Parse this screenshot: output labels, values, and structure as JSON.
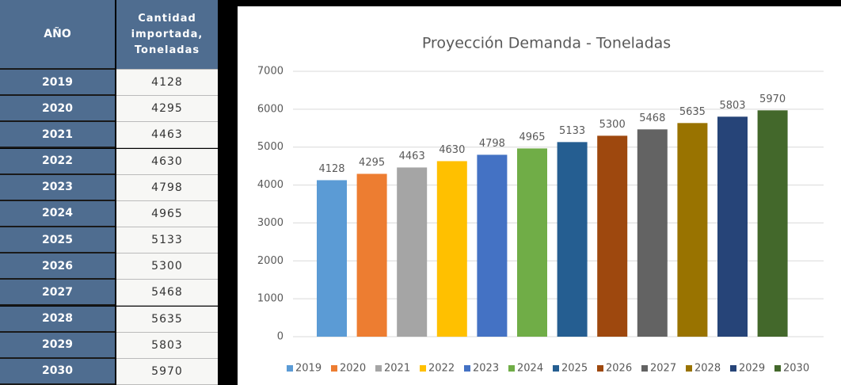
{
  "table": {
    "header": [
      "AÑO",
      "Cantidad importada, Toneladas"
    ],
    "rows": [
      [
        2019,
        4128
      ],
      [
        2020,
        4295
      ],
      [
        2021,
        4463
      ],
      [
        2022,
        4630
      ],
      [
        2023,
        4798
      ],
      [
        2024,
        4965
      ],
      [
        2025,
        5133
      ],
      [
        2026,
        5300
      ],
      [
        2027,
        5468
      ],
      [
        2028,
        5635
      ],
      [
        2029,
        5803
      ],
      [
        2030,
        5970
      ]
    ]
  },
  "chart_data": {
    "type": "bar",
    "title": "Proyección Demanda - Toneladas",
    "categories": [
      null
    ],
    "series": [
      {
        "name": "2019",
        "color": "#5b9bd5",
        "values": [
          4128
        ]
      },
      {
        "name": "2020",
        "color": "#ed7d31",
        "values": [
          4295
        ]
      },
      {
        "name": "2021",
        "color": "#a5a5a5",
        "values": [
          4463
        ]
      },
      {
        "name": "2022",
        "color": "#ffc000",
        "values": [
          4630
        ]
      },
      {
        "name": "2023",
        "color": "#4472c4",
        "values": [
          4798
        ]
      },
      {
        "name": "2024",
        "color": "#70ad47",
        "values": [
          4965
        ]
      },
      {
        "name": "2025",
        "color": "#255e91",
        "values": [
          5133
        ]
      },
      {
        "name": "2026",
        "color": "#9e480e",
        "values": [
          5300
        ]
      },
      {
        "name": "2027",
        "color": "#636363",
        "values": [
          5468
        ]
      },
      {
        "name": "2028",
        "color": "#997300",
        "values": [
          5635
        ]
      },
      {
        "name": "2029",
        "color": "#264478",
        "values": [
          5803
        ]
      },
      {
        "name": "2030",
        "color": "#43682b",
        "values": [
          5970
        ]
      }
    ],
    "ylim": [
      0,
      7000
    ],
    "yticks": [
      0,
      1000,
      2000,
      3000,
      4000,
      5000,
      6000,
      7000
    ],
    "grid": true,
    "legend": "bottom"
  }
}
